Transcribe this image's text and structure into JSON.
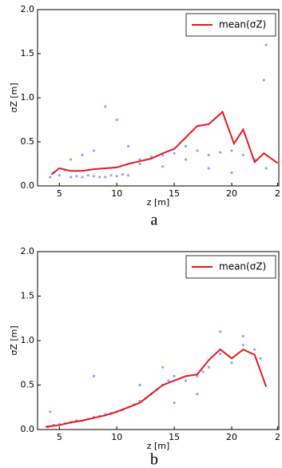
{
  "chart_data": [
    {
      "type": "line",
      "caption": "a",
      "xlabel": "z [m]",
      "ylabel": "σZ [m]",
      "xlim": [
        3.1,
        24.1
      ],
      "ylim": [
        0,
        2
      ],
      "xticks": [
        5,
        10,
        15,
        20,
        {
          "value": 24,
          "label": "2"
        }
      ],
      "yticks": [
        {
          "value": 0,
          "label": "0.0"
        },
        {
          "value": 0.5,
          "label": "0.5"
        },
        {
          "value": 1,
          "label": "1.0"
        },
        {
          "value": 1.5,
          "label": "1.5"
        },
        {
          "value": 2,
          "label": "2.0"
        }
      ],
      "legend": "upper right",
      "series": [
        {
          "name": "mean(σZ)",
          "color": "#e31a1c",
          "x": [
            4.3,
            5,
            6,
            7,
            8,
            9,
            10,
            11,
            12,
            13,
            14,
            15,
            16,
            17,
            18,
            19.2,
            20.2,
            21,
            22,
            22.8,
            24
          ],
          "values": [
            0.13,
            0.2,
            0.17,
            0.17,
            0.19,
            0.2,
            0.21,
            0.25,
            0.28,
            0.31,
            0.37,
            0.42,
            0.55,
            0.68,
            0.7,
            0.84,
            0.48,
            0.64,
            0.27,
            0.37,
            0.26
          ]
        }
      ],
      "points": {
        "color": "#1f2fe0",
        "x": [
          4.2,
          4.5,
          5,
          5.5,
          6,
          6.5,
          7,
          7.5,
          8,
          8.5,
          9,
          9.5,
          10,
          10.5,
          11,
          12,
          13,
          14,
          15,
          16,
          17,
          18,
          19,
          20,
          21,
          22,
          23,
          9,
          10,
          23,
          22.8,
          6,
          7,
          8,
          11,
          12,
          14,
          16,
          18,
          20
        ],
        "values": [
          0.1,
          0.15,
          0.12,
          0.18,
          0.1,
          0.11,
          0.1,
          0.12,
          0.11,
          0.1,
          0.1,
          0.12,
          0.11,
          0.13,
          0.12,
          0.3,
          0.33,
          0.35,
          0.37,
          0.3,
          0.4,
          0.35,
          0.38,
          0.4,
          0.35,
          0.3,
          0.2,
          0.9,
          0.75,
          1.6,
          1.2,
          0.3,
          0.35,
          0.4,
          0.45,
          0.25,
          0.22,
          0.45,
          0.2,
          0.15
        ]
      }
    },
    {
      "type": "line",
      "caption": "b",
      "xlabel": "z [m]",
      "ylabel": "σZ [m]",
      "xlim": [
        3.1,
        24.1
      ],
      "ylim": [
        0,
        2
      ],
      "xticks": [
        5,
        10,
        15,
        20,
        {
          "value": 24,
          "label": "2"
        }
      ],
      "yticks": [
        {
          "value": 0,
          "label": "0.0"
        },
        {
          "value": 0.5,
          "label": "0.5"
        },
        {
          "value": 1,
          "label": "1.0"
        },
        {
          "value": 1.5,
          "label": "1.5"
        },
        {
          "value": 2,
          "label": "2.0"
        }
      ],
      "legend": "upper right",
      "series": [
        {
          "name": "mean(σZ)",
          "color": "#e31a1c",
          "x": [
            3.8,
            5,
            6,
            7,
            8,
            9,
            10,
            11,
            12,
            13,
            14,
            15,
            16,
            17,
            18,
            19,
            20,
            21,
            22,
            23
          ],
          "values": [
            0.03,
            0.05,
            0.08,
            0.1,
            0.13,
            0.16,
            0.2,
            0.25,
            0.3,
            0.4,
            0.5,
            0.55,
            0.6,
            0.62,
            0.78,
            0.9,
            0.8,
            0.9,
            0.84,
            0.48
          ]
        }
      ],
      "points": {
        "color": "#1f2fe0",
        "x": [
          4,
          4.5,
          5,
          5.5,
          6,
          6.5,
          7,
          7.5,
          8,
          8.5,
          9,
          9.5,
          10,
          10.5,
          11,
          11.5,
          12,
          12.5,
          13,
          13.5,
          14,
          14.5,
          15,
          16,
          17,
          17.5,
          18,
          19,
          20,
          21,
          22,
          22.5,
          4.2,
          8,
          12,
          14,
          15,
          17,
          19,
          21
        ],
        "values": [
          0.03,
          0.05,
          0.06,
          0.07,
          0.08,
          0.1,
          0.1,
          0.12,
          0.14,
          0.15,
          0.17,
          0.18,
          0.2,
          0.22,
          0.25,
          0.28,
          0.32,
          0.35,
          0.4,
          0.45,
          0.5,
          0.55,
          0.6,
          0.55,
          0.6,
          0.65,
          0.7,
          0.85,
          0.75,
          0.95,
          0.9,
          0.8,
          0.2,
          0.6,
          0.5,
          0.7,
          0.3,
          0.4,
          1.1,
          1.05
        ]
      }
    }
  ]
}
